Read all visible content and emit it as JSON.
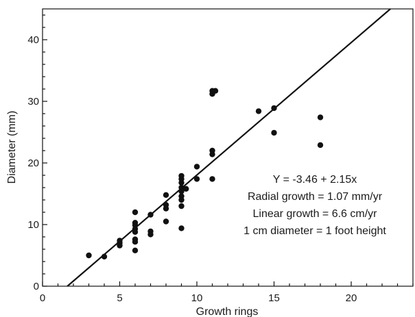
{
  "chart_data": {
    "type": "scatter",
    "title": "",
    "xlabel": "Growth rings",
    "ylabel": "Diameter (mm)",
    "xlim": [
      0,
      24
    ],
    "ylim": [
      0,
      45
    ],
    "xticks": [
      0,
      5,
      10,
      15,
      20
    ],
    "yticks": [
      0,
      10,
      20,
      30,
      40
    ],
    "x_minor_step": 1,
    "y_minor_step": 2,
    "grid": false,
    "legend": "none",
    "colors": {
      "points": "#111111",
      "line": "#111111",
      "axes": "#111111"
    },
    "points": [
      [
        3,
        5.0
      ],
      [
        4,
        4.8
      ],
      [
        5,
        6.6
      ],
      [
        5,
        7.0
      ],
      [
        5,
        7.4
      ],
      [
        6,
        5.8
      ],
      [
        6,
        7.2
      ],
      [
        6,
        7.6
      ],
      [
        6,
        8.8
      ],
      [
        6,
        9.3
      ],
      [
        6,
        9.9
      ],
      [
        6,
        10.3
      ],
      [
        6,
        12.0
      ],
      [
        7,
        8.4
      ],
      [
        7,
        8.9
      ],
      [
        7,
        11.6
      ],
      [
        8,
        10.5
      ],
      [
        8,
        12.6
      ],
      [
        8,
        13.2
      ],
      [
        8,
        14.8
      ],
      [
        9,
        9.4
      ],
      [
        9,
        13.0
      ],
      [
        9,
        14.0
      ],
      [
        9,
        14.6
      ],
      [
        9,
        15.4
      ],
      [
        9,
        16.0
      ],
      [
        9,
        16.8
      ],
      [
        9,
        17.4
      ],
      [
        9,
        17.9
      ],
      [
        9.3,
        15.8
      ],
      [
        10,
        17.4
      ],
      [
        10,
        19.4
      ],
      [
        11,
        17.4
      ],
      [
        11,
        21.4
      ],
      [
        11,
        22.0
      ],
      [
        11,
        31.2
      ],
      [
        11,
        31.7
      ],
      [
        11.2,
        31.7
      ],
      [
        14,
        28.4
      ],
      [
        15,
        24.9
      ],
      [
        15,
        28.9
      ],
      [
        18,
        22.9
      ],
      [
        18,
        27.4
      ]
    ],
    "regression": {
      "intercept": -3.46,
      "slope": 2.15
    },
    "annotations": [
      "Y = -3.46 + 2.15x",
      "Radial growth = 1.07 mm/yr",
      "Linear growth = 6.6 cm/yr",
      "1 cm diameter = 1 foot height"
    ]
  }
}
